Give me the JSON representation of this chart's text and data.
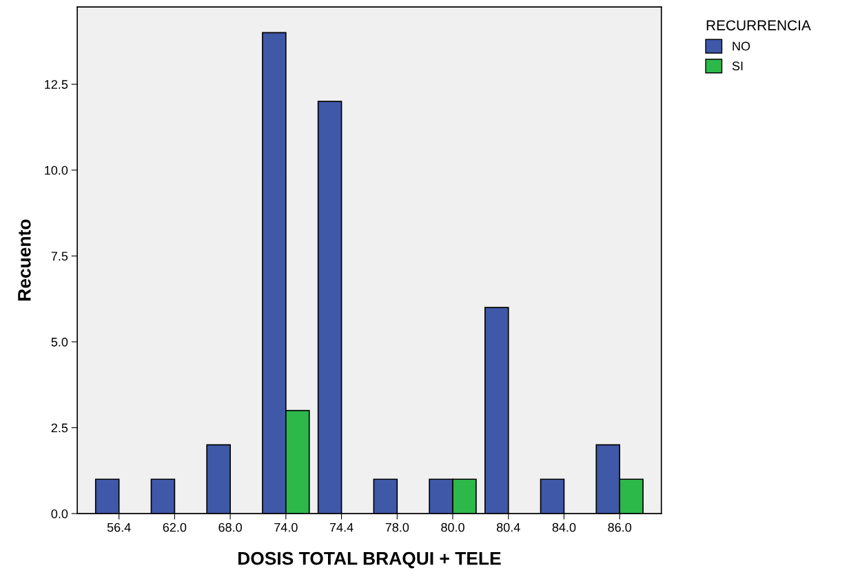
{
  "chart_data": {
    "type": "bar",
    "xlabel": "DOSIS TOTAL BRAQUI + TELE",
    "ylabel": "Recuento",
    "legend_title": "RECURRENCIA",
    "legend": "top right",
    "categories": [
      "56.4",
      "62.0",
      "68.0",
      "74.0",
      "74.4",
      "78.0",
      "80.0",
      "80.4",
      "84.0",
      "86.0"
    ],
    "series": [
      {
        "name": "NO",
        "color": "#3f58a8",
        "values": [
          1,
          1,
          2,
          14,
          12,
          1,
          1,
          6,
          1,
          2
        ]
      },
      {
        "name": "SI",
        "color": "#2db84a",
        "values": [
          null,
          null,
          null,
          3,
          null,
          null,
          1,
          null,
          null,
          1
        ]
      }
    ],
    "ylim": [
      0,
      14.75
    ],
    "yticks": [
      {
        "value": 0,
        "label": "0.0"
      },
      {
        "value": 2.5,
        "label": "2.5"
      },
      {
        "value": 5,
        "label": "5.0"
      },
      {
        "value": 7.5,
        "label": "7.5"
      },
      {
        "value": 10,
        "label": "10.0"
      },
      {
        "value": 12.5,
        "label": "12.5"
      }
    ],
    "grid": false
  }
}
